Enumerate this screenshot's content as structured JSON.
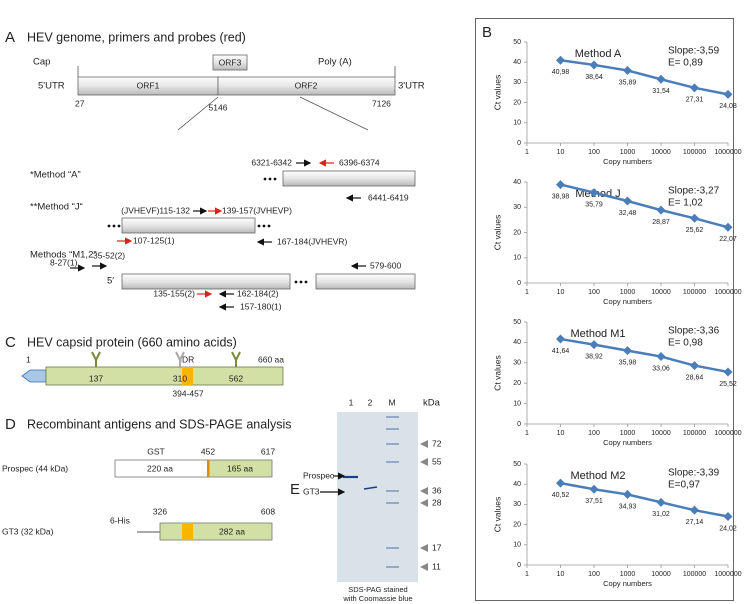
{
  "panel_a": {
    "letter": "A",
    "title": "HEV genome, primers and probes (red)",
    "cap": "Cap",
    "poly_a": "Poly (A)",
    "utr5": "5'UTR",
    "utr3": "3'UTR",
    "orf1": "ORF1",
    "orf2": "ORF2",
    "orf3": "ORF3",
    "positions": [
      "27",
      "5146",
      "7126"
    ],
    "method_a": {
      "label": "*Method “A”",
      "primers": [
        "6321-6342",
        "6396-6374",
        "6441-6419"
      ]
    },
    "method_j": {
      "label": "**Method “J“",
      "primers": [
        "(JVHEVF)115-132",
        "139-157(JVHEVP)",
        "167-184(JVHEVR)"
      ]
    },
    "method_m": {
      "label": "Methods “M1,2”",
      "five_prime": "5′",
      "primers": [
        "8-27(1)",
        "35-52(2)",
        "107-125(1)",
        "579-600",
        "135-155(2)",
        "162-184(2)",
        "157-180(1)"
      ]
    }
  },
  "panel_b": {
    "letter": "B"
  },
  "panel_c": {
    "letter": "C",
    "title": "HEV capsid protein (660 amino acids)",
    "start": "1",
    "end": "660 aa",
    "sites": [
      "137",
      "310",
      "562"
    ],
    "idr": "IDR",
    "idr_range": "394-457"
  },
  "panel_d": {
    "letter": "D",
    "title": "Recombinant antigens and SDS-PAGE analysis",
    "prospec": {
      "label": "Prospec (44 kDa)",
      "tag": "GST",
      "start": "452",
      "end": "617",
      "tag_length": "220 aa",
      "length": "165 aa"
    },
    "gt3": {
      "label": "GT3 (32 kDa)",
      "tag": "6-His",
      "start": "326",
      "end": "608",
      "length": "282 aa"
    }
  },
  "panel_e": {
    "letter": "E",
    "lanes": [
      "1",
      "2",
      "M"
    ],
    "unit": "kDa",
    "markers": [
      "72",
      "55",
      "36",
      "28",
      "17",
      "11"
    ],
    "bands": [
      "Prospec",
      "GT3"
    ],
    "caption": [
      "SDS-PAG stained",
      "with Coomassie blue"
    ]
  },
  "chart_data": [
    {
      "type": "line",
      "title": "Method A",
      "annotations": [
        "Slope:-3,59",
        "E= 0,89"
      ],
      "xlabel": "Copy numbers",
      "ylabel": "Ct values",
      "xscale": "log",
      "color": "#4a7ebb",
      "x": [
        10,
        100,
        1000,
        10000,
        100000,
        1000000
      ],
      "values": [
        40.98,
        38.64,
        35.89,
        31.54,
        27.31,
        24.08
      ],
      "value_labels": [
        "40,98",
        "38,64",
        "35,89",
        "31,54",
        "27,31",
        "24,08"
      ],
      "xlim": [
        1,
        1000000
      ],
      "xticks": [
        1,
        10,
        100,
        1000,
        10000,
        100000,
        1000000
      ],
      "ylim": [
        0,
        50
      ],
      "yticks": [
        0,
        10,
        20,
        30,
        40,
        50
      ]
    },
    {
      "type": "line",
      "title": "Method J",
      "annotations": [
        "Slope:-3,27",
        "E= 1,02"
      ],
      "xlabel": "Copy numbers",
      "ylabel": "Ct values",
      "xscale": "log",
      "color": "#4a7ebb",
      "x": [
        10,
        100,
        1000,
        10000,
        100000,
        1000000
      ],
      "values": [
        38.98,
        35.79,
        32.48,
        28.87,
        25.62,
        22.07
      ],
      "value_labels": [
        "38,98",
        "35,79",
        "32,48",
        "28,87",
        "25,62",
        "22,07"
      ],
      "xlim": [
        1,
        1000000
      ],
      "xticks": [
        1,
        10,
        100,
        1000,
        10000,
        100000,
        1000000
      ],
      "ylim": [
        0,
        40
      ],
      "yticks": [
        0,
        10,
        20,
        30,
        40
      ]
    },
    {
      "type": "line",
      "title": "Method M1",
      "annotations": [
        "Slope:-3,36",
        "E= 0,98"
      ],
      "xlabel": "Copy numbers",
      "ylabel": "Ct values",
      "xscale": "log",
      "color": "#4a7ebb",
      "x": [
        10,
        100,
        1000,
        10000,
        100000,
        1000000
      ],
      "values": [
        41.64,
        38.92,
        35.98,
        33.06,
        28.64,
        25.52
      ],
      "value_labels": [
        "41,64",
        "38,92",
        "35,98",
        "33,06",
        "28,64",
        "25,52"
      ],
      "xlim": [
        1,
        1000000
      ],
      "xticks": [
        1,
        10,
        100,
        1000,
        10000,
        100000,
        1000000
      ],
      "ylim": [
        0,
        50
      ],
      "yticks": [
        0,
        10,
        20,
        30,
        40,
        50
      ]
    },
    {
      "type": "line",
      "title": "Method M2",
      "annotations": [
        "Slope:-3,39",
        "E=0,97"
      ],
      "xlabel": "Copy numbers",
      "ylabel": "Ct values",
      "xscale": "log",
      "color": "#4a7ebb",
      "x": [
        10,
        100,
        1000,
        10000,
        100000,
        1000000
      ],
      "values": [
        40.52,
        37.51,
        34.93,
        31.02,
        27.14,
        24.02
      ],
      "value_labels": [
        "40,52",
        "37,51",
        "34,93",
        "31,02",
        "27,14",
        "24,02"
      ],
      "xlim": [
        1,
        1000000
      ],
      "xticks": [
        1,
        10,
        100,
        1000,
        10000,
        100000,
        1000000
      ],
      "ylim": [
        0,
        50
      ],
      "yticks": [
        0,
        10,
        20,
        30,
        40,
        50
      ]
    }
  ]
}
